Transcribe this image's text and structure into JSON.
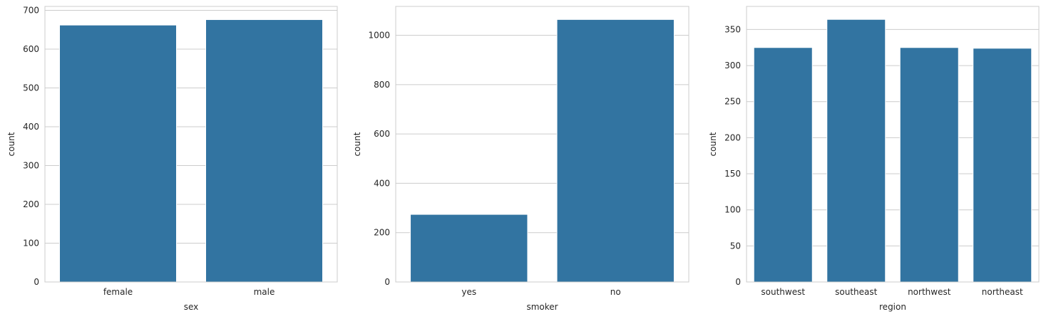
{
  "colors": {
    "bar": "#3274a1",
    "grid": "#cccccc",
    "text": "#262626",
    "background": "#ffffff"
  },
  "chart_data": [
    {
      "type": "bar",
      "categories": [
        "female",
        "male"
      ],
      "values": [
        662,
        676
      ],
      "xlabel": "sex",
      "ylabel": "count",
      "ylim": [
        0,
        710
      ],
      "yticks": [
        0,
        100,
        200,
        300,
        400,
        500,
        600,
        700
      ],
      "grid": true
    },
    {
      "type": "bar",
      "categories": [
        "yes",
        "no"
      ],
      "values": [
        274,
        1064
      ],
      "xlabel": "smoker",
      "ylabel": "count",
      "ylim": [
        0,
        1117
      ],
      "yticks": [
        0,
        200,
        400,
        600,
        800,
        1000
      ],
      "grid": true
    },
    {
      "type": "bar",
      "categories": [
        "southwest",
        "southeast",
        "northwest",
        "northeast"
      ],
      "values": [
        325,
        364,
        325,
        324
      ],
      "xlabel": "region",
      "ylabel": "count",
      "ylim": [
        0,
        382
      ],
      "yticks": [
        0,
        50,
        100,
        150,
        200,
        250,
        300,
        350
      ],
      "grid": true
    }
  ]
}
